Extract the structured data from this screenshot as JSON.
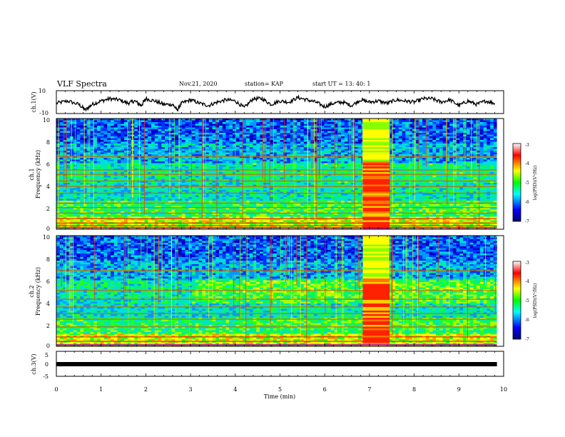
{
  "header": {
    "title": "VLF Spectra",
    "date": "Nov.21, 2020",
    "station": "station= KAP",
    "start": "start  UT =   13: 40: 1"
  },
  "colorscale": {
    "label": "log(PSD)(V²/Hz)",
    "ticks": [
      "-3",
      "-4",
      "-5",
      "-6",
      "-7"
    ],
    "colors": [
      "#ffffff",
      "#ff0000",
      "#ffff00",
      "#00ff00",
      "#00ffff",
      "#0000ff",
      "#000070"
    ]
  },
  "chart_data": [
    {
      "type": "line",
      "ylabel": "ch.1(V)",
      "ylim": [
        -10,
        10
      ],
      "ytick_labels": [
        "10",
        "-10"
      ],
      "xlim": [
        0,
        10
      ],
      "line_color": "#000000",
      "x": [
        0,
        0.25,
        0.5,
        0.65,
        0.8,
        1.0,
        1.2,
        1.4,
        1.6,
        1.75,
        1.9,
        2.0,
        2.2,
        2.4,
        2.6,
        2.7,
        2.8,
        3.0,
        3.2,
        3.4,
        3.6,
        3.8,
        4.0,
        4.2,
        4.4,
        4.6,
        4.8,
        5.0,
        5.2,
        5.4,
        5.6,
        5.8,
        6.0,
        6.2,
        6.4,
        6.6,
        6.8,
        7.0,
        7.2,
        7.4,
        7.6,
        7.8,
        8.0,
        8.2,
        8.4,
        8.6,
        8.8,
        9.0,
        9.2,
        9.4,
        9.6,
        9.8
      ],
      "y": [
        -1,
        1,
        -2,
        -7,
        -2,
        1,
        3,
        2,
        -1,
        1,
        -3,
        3,
        1,
        -2,
        -2,
        -7,
        -1,
        2,
        -1,
        -3,
        0,
        2,
        1,
        -5,
        3,
        3,
        -2,
        1,
        0,
        4,
        2,
        0,
        -4,
        -1,
        0,
        -3,
        2,
        0,
        1,
        -1,
        2,
        1,
        0,
        3,
        3,
        0,
        2,
        -3,
        1,
        -2,
        1,
        -1
      ]
    },
    {
      "type": "heatmap",
      "ylabel": "ch.1\nFrequency  (kHz)",
      "ylim": [
        0,
        10
      ],
      "ytick_labels": [
        "0",
        "2",
        "4",
        "6",
        "8",
        "10"
      ],
      "xlim": [
        0,
        10
      ],
      "burst_minutes": [
        6.85,
        7.45
      ],
      "persistent_lines_khz": [
        0.35,
        0.6,
        1.0,
        1.5,
        2.0,
        2.4,
        3.3,
        3.9,
        4.4,
        5.0,
        5.4,
        6.6
      ],
      "zrange": [
        -7,
        -3
      ]
    },
    {
      "type": "heatmap",
      "ylabel": "ch.2\nFrequency  (kHz)",
      "ylim": [
        0,
        10
      ],
      "ytick_labels": [
        "0",
        "2",
        "4",
        "6",
        "8",
        "10"
      ],
      "xlim": [
        0,
        10
      ],
      "burst_minutes": [
        6.85,
        7.45
      ],
      "persistent_lines_khz": [
        0.15,
        0.5,
        0.9,
        1.8,
        2.5,
        3.0,
        3.6,
        4.3,
        5.1,
        6.9
      ],
      "zrange": [
        -7,
        -3
      ]
    },
    {
      "type": "line",
      "ylabel": "ch.3(V)",
      "ylim": [
        -5,
        5
      ],
      "ytick_labels": [
        "5",
        "0",
        "-5"
      ],
      "xlim": [
        0,
        10
      ],
      "x": [
        0,
        9.85
      ],
      "y": [
        0,
        0
      ],
      "line_color": "#000000"
    }
  ],
  "xaxis": {
    "label": "Time  (min)",
    "tick_labels": [
      "0",
      "1",
      "2",
      "3",
      "4",
      "5",
      "6",
      "7",
      "8",
      "9",
      "10"
    ]
  }
}
